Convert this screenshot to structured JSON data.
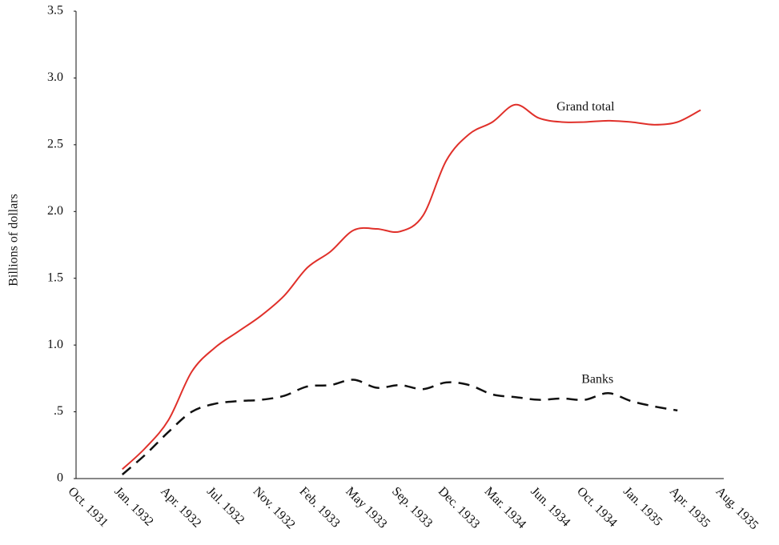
{
  "chart_data": {
    "type": "line",
    "y_label": "Billions of dollars",
    "categories": [
      "Oct. 1931",
      null,
      "Jan. 1932",
      null,
      "Apr. 1932",
      null,
      "Jul. 1932",
      null,
      "Nov. 1932",
      null,
      "Feb. 1933",
      null,
      "May 1933",
      null,
      "Sep. 1933",
      null,
      "Dec. 1933",
      null,
      "Mar. 1934",
      null,
      "Jun. 1934",
      null,
      "Oct. 1934",
      null,
      "Jan. 1935",
      null,
      "Apr. 1935",
      null,
      "Aug. 1935"
    ],
    "series": [
      {
        "name": "Grand total",
        "color": "#e0302a",
        "dash": false,
        "values": [
          null,
          null,
          0.07,
          0.23,
          0.44,
          0.8,
          0.98,
          1.1,
          1.22,
          1.37,
          1.58,
          1.7,
          1.86,
          1.87,
          1.85,
          1.97,
          2.38,
          2.58,
          2.67,
          2.8,
          2.7,
          2.67,
          2.67,
          2.68,
          2.67,
          2.65,
          2.67,
          2.76,
          null
        ]
      },
      {
        "name": "Banks",
        "color": "#111111",
        "dash": true,
        "values": [
          null,
          null,
          0.03,
          0.18,
          0.35,
          0.5,
          0.56,
          0.58,
          0.59,
          0.62,
          0.69,
          0.7,
          0.74,
          0.68,
          0.7,
          0.67,
          0.72,
          0.7,
          0.63,
          0.61,
          0.59,
          0.6,
          0.59,
          0.64,
          0.58,
          0.54,
          0.51,
          null,
          null
        ]
      }
    ],
    "ylim": [
      0,
      3.5
    ],
    "yticks": [
      0,
      {
        "value": 0.5,
        "label": ".5"
      },
      {
        "value": 1,
        "label": "1.0"
      },
      {
        "value": 1.5,
        "label": "1.5"
      },
      {
        "value": 2,
        "label": "2.0"
      },
      {
        "value": 2.5,
        "label": "2.5"
      },
      {
        "value": 3,
        "label": "3.0"
      },
      {
        "value": 3.5,
        "label": "3.5"
      }
    ],
    "grid": false
  }
}
